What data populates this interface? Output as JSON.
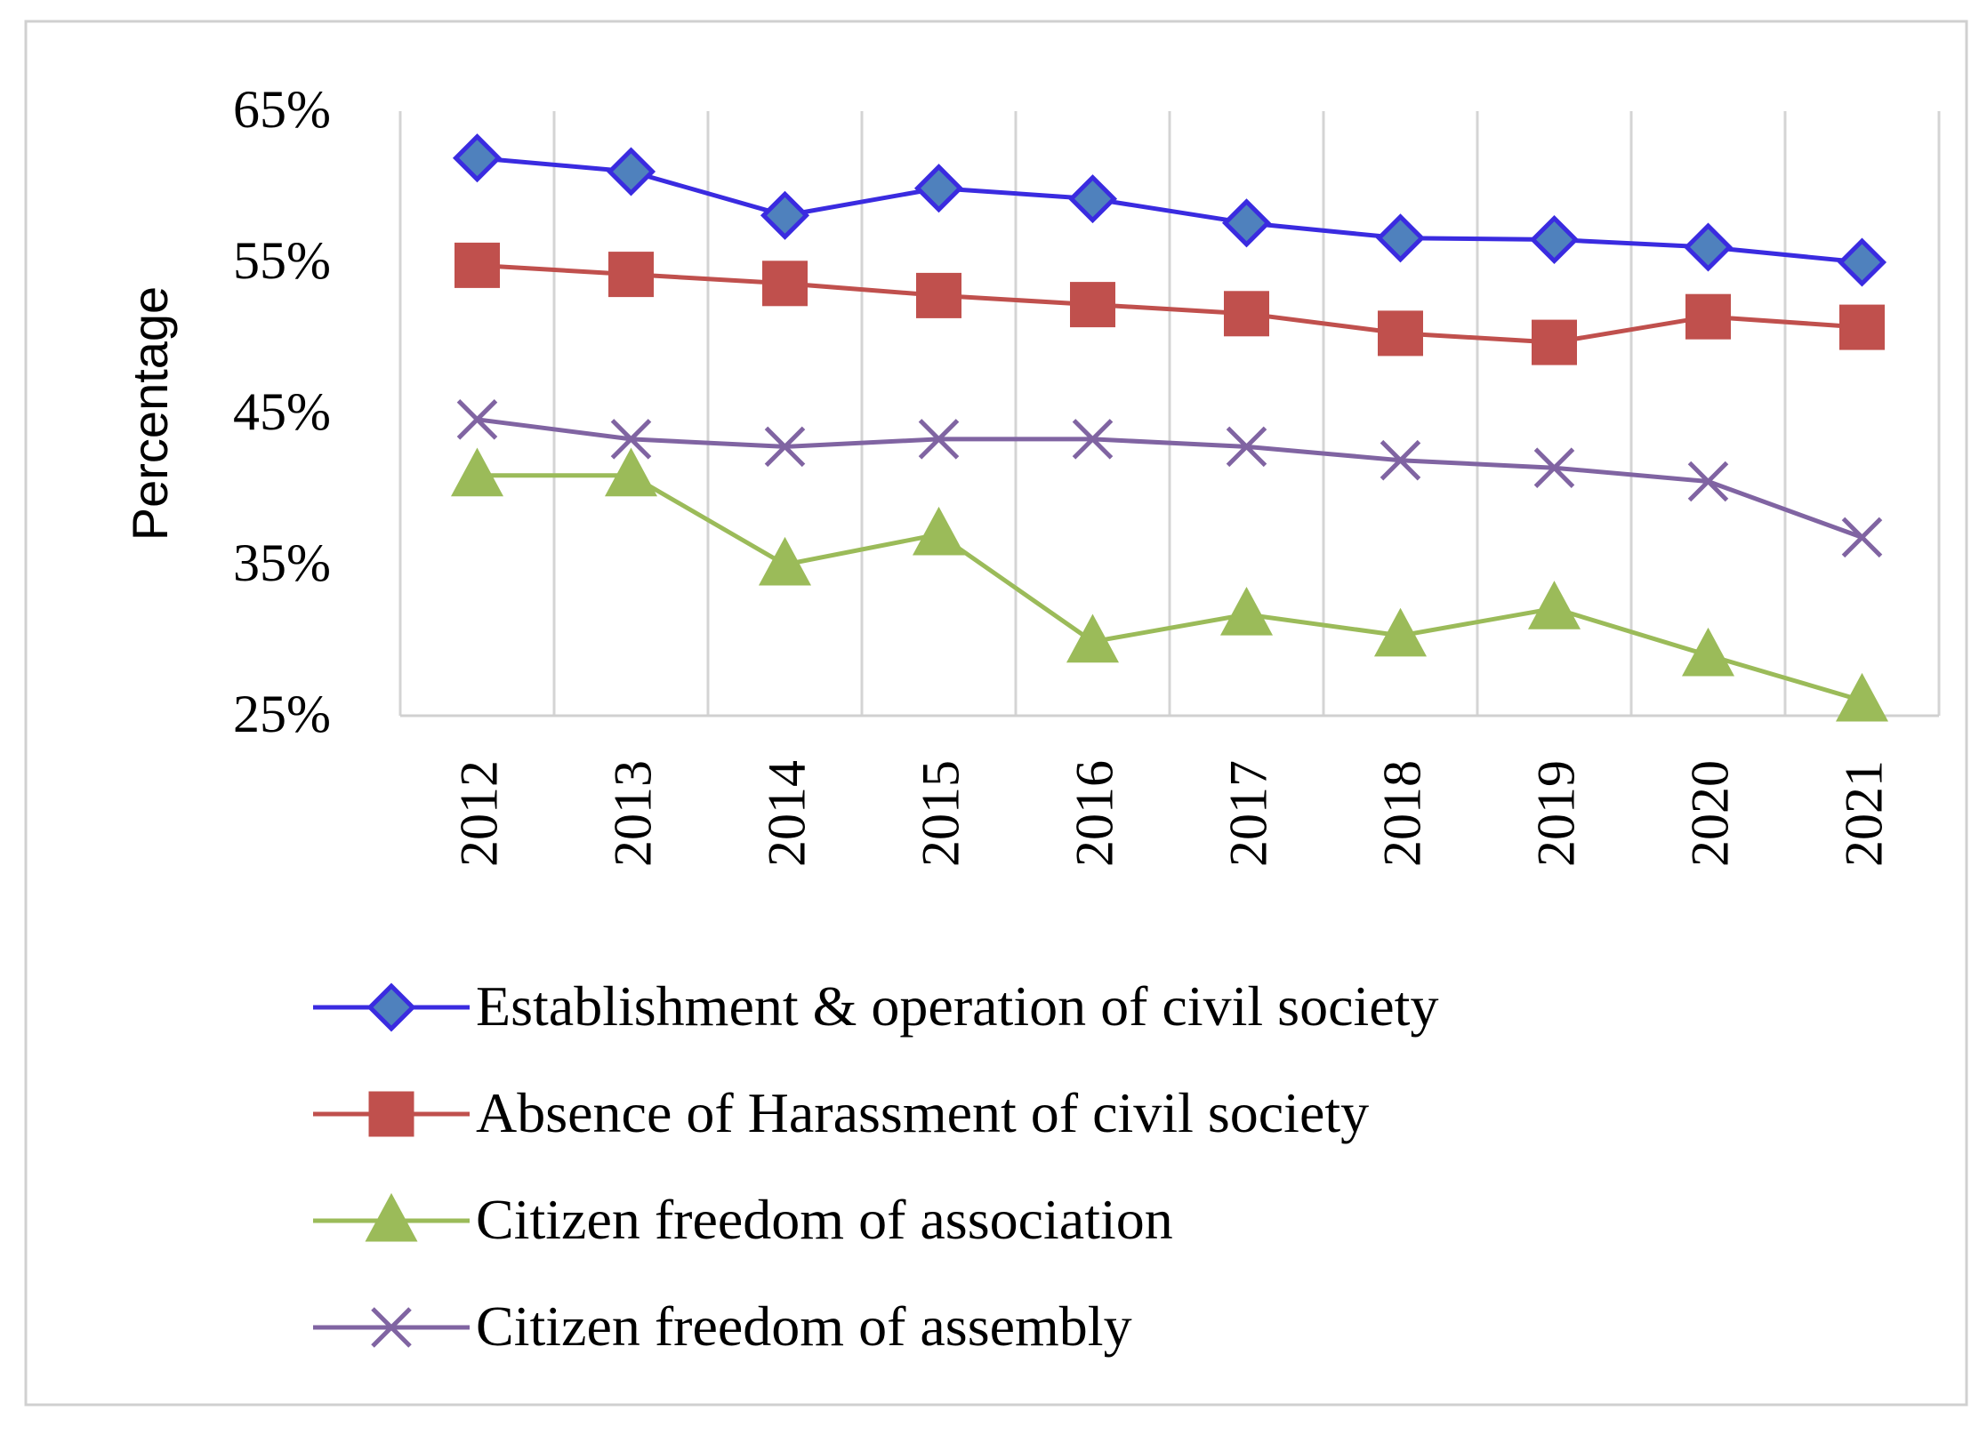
{
  "chart_data": {
    "type": "line",
    "title": "",
    "xlabel": "",
    "ylabel": "Percentage",
    "ylim": [
      25,
      65
    ],
    "yticks": [
      25,
      35,
      45,
      55,
      65
    ],
    "ytick_labels": [
      "25%",
      "35%",
      "45%",
      "55%",
      "65%"
    ],
    "categories": [
      "2012",
      "2013",
      "2014",
      "2015",
      "2016",
      "2017",
      "2018",
      "2019",
      "2020",
      "2021"
    ],
    "grid": "vertical",
    "legend_position": "bottom",
    "series": [
      {
        "name": "Establishment & operation of civil society",
        "marker": "diamond",
        "color": "#3a2be0",
        "marker_fill": "#4f81bd",
        "values": [
          61.9,
          61.0,
          58.1,
          59.9,
          59.2,
          57.6,
          56.6,
          56.5,
          56.0,
          55.0
        ]
      },
      {
        "name": "Absence of Harassment of civil society",
        "marker": "square",
        "color": "#c0504d",
        "marker_fill": "#c0504d",
        "values": [
          54.8,
          54.2,
          53.6,
          52.8,
          52.2,
          51.6,
          50.3,
          49.7,
          51.4,
          50.7
        ]
      },
      {
        "name": "Citizen freedom of association",
        "marker": "triangle",
        "color": "#9bbb59",
        "marker_fill": "#9bbb59",
        "values": [
          40.9,
          40.9,
          35.0,
          37.0,
          29.9,
          31.7,
          30.3,
          32.1,
          29.0,
          26.0
        ]
      },
      {
        "name": "Citizen freedom of assembly",
        "marker": "x",
        "color": "#8064a2",
        "marker_fill": "#8064a2",
        "values": [
          44.6,
          43.3,
          42.8,
          43.3,
          43.3,
          42.8,
          41.9,
          41.4,
          40.5,
          36.8
        ]
      }
    ]
  }
}
